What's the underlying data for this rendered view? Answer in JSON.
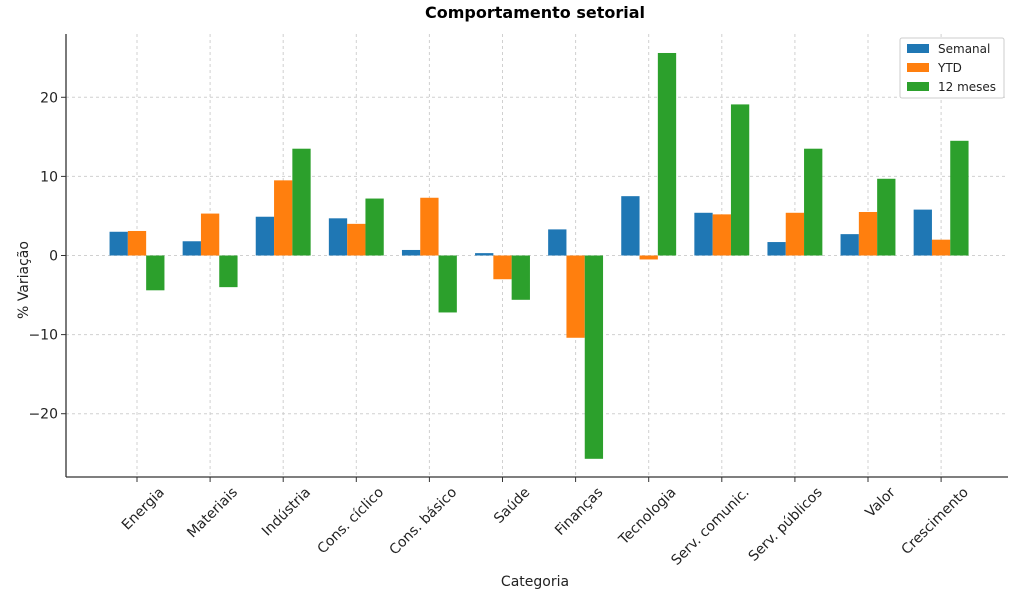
{
  "chart_data": {
    "type": "bar",
    "title": "Comportamento setorial",
    "xlabel": "Categoria",
    "ylabel": "% Variação",
    "categories": [
      "Energia",
      "Materiais",
      "Indústria",
      "Cons. cíclico",
      "Cons. básico",
      "Saúde",
      "Finanças",
      "Tecnologia",
      "Serv. comunic.",
      "Serv. públicos",
      "Valor",
      "Crescimento"
    ],
    "series": [
      {
        "name": "Semanal",
        "color": "#1f77b4",
        "values": [
          3.0,
          1.8,
          4.9,
          4.7,
          0.7,
          0.3,
          3.3,
          7.5,
          5.4,
          1.7,
          2.7,
          5.8
        ]
      },
      {
        "name": "YTD",
        "color": "#ff7f0e",
        "values": [
          3.1,
          5.3,
          9.5,
          4.0,
          7.3,
          -3.0,
          -10.4,
          -0.5,
          5.2,
          5.4,
          5.5,
          2.0
        ]
      },
      {
        "name": "12 meses",
        "color": "#2ca02c",
        "values": [
          -4.4,
          -4.0,
          13.5,
          7.2,
          -7.2,
          -5.6,
          -25.7,
          25.6,
          19.1,
          13.5,
          9.7,
          14.5
        ]
      }
    ],
    "ylim": [
      -28,
      28
    ],
    "yticks": [
      -20,
      -10,
      0,
      10,
      20
    ],
    "ytick_labels": [
      "−20",
      "−10",
      "0",
      "10",
      "20"
    ],
    "grid": true,
    "legend_position": "top-right"
  }
}
